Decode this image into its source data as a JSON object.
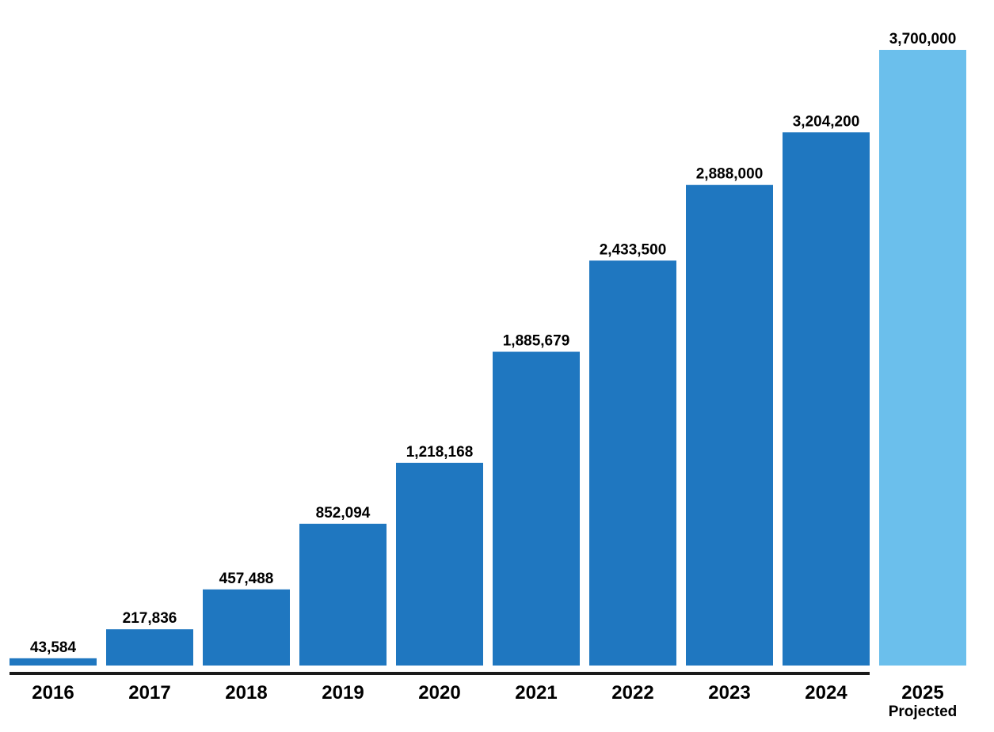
{
  "chart_data": {
    "type": "bar",
    "categories": [
      "2016",
      "2017",
      "2018",
      "2019",
      "2020",
      "2021",
      "2022",
      "2023",
      "2024",
      "2025"
    ],
    "category_sublabels": [
      "",
      "",
      "",
      "",
      "",
      "",
      "",
      "",
      "",
      "Projected"
    ],
    "values": [
      43584,
      217836,
      457488,
      852094,
      1218168,
      1885679,
      2433500,
      2888000,
      3204200,
      3700000
    ],
    "data_labels": [
      "43,584",
      "217,836",
      "457,488",
      "852,094",
      "1,218,168",
      "1,885,679",
      "2,433,500",
      "2,888,000",
      "3,204,200",
      "3,700,000"
    ],
    "projected": [
      false,
      false,
      false,
      false,
      false,
      false,
      false,
      false,
      false,
      true
    ],
    "title": "",
    "xlabel": "",
    "ylabel": "",
    "ylim": [
      0,
      3700000
    ],
    "grid": false,
    "colors": {
      "actual": "#1f77c0",
      "projected": "#6bbfec",
      "axis": "#1a1a1a"
    }
  }
}
